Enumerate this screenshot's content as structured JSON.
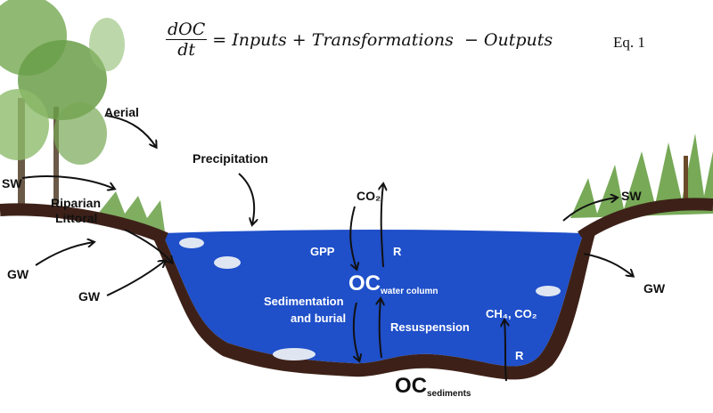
{
  "equation": {
    "numerator": "dOC",
    "denominator": "dt",
    "rhs": "= Inputs + Transformations  − Outputs",
    "label": "Eq. 1"
  },
  "labels": {
    "aerial": "Aerial",
    "precipitation": "Precipitation",
    "sw_left": "SW",
    "riparian": "Riparian",
    "littoral": "Littoral",
    "gw_left_upper": "GW",
    "gw_left_lower": "GW",
    "co2_top": "CO₂",
    "gpp": "GPP",
    "r_top": "R",
    "oc_water": "OC",
    "oc_water_sub": "water column",
    "sedimentation": "Sedimentation",
    "and_burial": "and burial",
    "resuspension": "Resuspension",
    "ch4_co2": "CH₄, CO₂",
    "r_bottom": "R",
    "oc_sediments": "OC",
    "oc_sediments_sub": "sediments",
    "sw_right": "SW",
    "gw_right": "GW"
  },
  "colors": {
    "water": "#1f4fc9",
    "soil": "#3d2118",
    "vegetation": "#5f9a3a",
    "text": "#111111"
  }
}
